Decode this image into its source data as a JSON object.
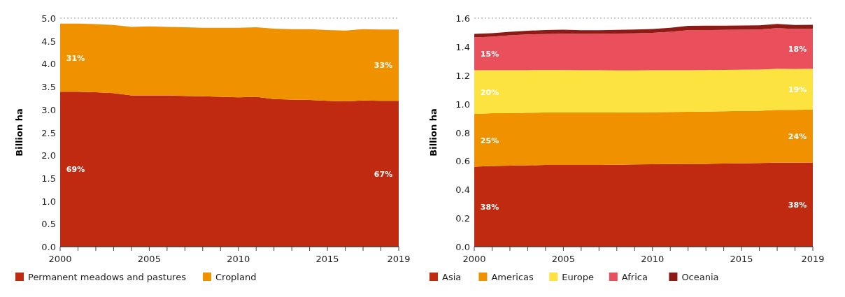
{
  "chart_data": [
    {
      "type": "area",
      "stacked": true,
      "ylabel": "Billion ha",
      "x": [
        2000,
        2001,
        2002,
        2003,
        2004,
        2005,
        2006,
        2007,
        2008,
        2009,
        2010,
        2011,
        2012,
        2013,
        2014,
        2015,
        2016,
        2017,
        2018,
        2019
      ],
      "series": [
        {
          "name": "Permanent meadows and pastures",
          "color": "#c02a10",
          "values": [
            3.39,
            3.39,
            3.38,
            3.36,
            3.31,
            3.31,
            3.31,
            3.3,
            3.29,
            3.28,
            3.27,
            3.28,
            3.23,
            3.22,
            3.21,
            3.19,
            3.18,
            3.2,
            3.19,
            3.19
          ]
        },
        {
          "name": "Cropland",
          "color": "#f09200",
          "values": [
            1.49,
            1.49,
            1.49,
            1.49,
            1.5,
            1.51,
            1.5,
            1.5,
            1.5,
            1.51,
            1.52,
            1.52,
            1.54,
            1.54,
            1.55,
            1.55,
            1.55,
            1.56,
            1.56,
            1.56
          ]
        }
      ],
      "xlim": [
        2000,
        2019
      ],
      "xticks": [
        2000,
        {
          "value": 2001,
          "label": null
        },
        {
          "value": 2002,
          "label": null
        },
        {
          "value": 2003,
          "label": null
        },
        {
          "value": 2004,
          "label": null
        },
        2005,
        {
          "value": 2006,
          "label": null
        },
        {
          "value": 2007,
          "label": null
        },
        {
          "value": 2008,
          "label": null
        },
        {
          "value": 2009,
          "label": null
        },
        2010,
        {
          "value": 2011,
          "label": null
        },
        {
          "value": 2012,
          "label": null
        },
        {
          "value": 2013,
          "label": null
        },
        {
          "value": 2014,
          "label": null
        },
        2015,
        {
          "value": 2016,
          "label": null
        },
        {
          "value": 2017,
          "label": null
        },
        {
          "value": 2018,
          "label": null
        },
        2019
      ],
      "ylim": [
        0,
        5
      ],
      "yticks": [
        {
          "value": 0,
          "label": "0.0"
        },
        0.5,
        {
          "value": 1,
          "label": "1.0"
        },
        1.5,
        {
          "value": 2,
          "label": "2.0"
        },
        2.5,
        {
          "value": 3,
          "label": "3.0"
        },
        3.5,
        {
          "value": 4,
          "label": "4.0"
        },
        4.5,
        {
          "value": 5,
          "label": "5.0"
        }
      ],
      "ref_lines": [
        {
          "axis": "y",
          "value": 5,
          "color": "#999999",
          "line_style": "dotted"
        }
      ],
      "annotations": [
        "31%",
        "33%",
        "69%",
        "67%"
      ],
      "legend": "bottom"
    },
    {
      "type": "area",
      "stacked": true,
      "ylabel": "Billion ha",
      "x": [
        2000,
        2001,
        2002,
        2003,
        2004,
        2005,
        2006,
        2007,
        2008,
        2009,
        2010,
        2011,
        2012,
        2013,
        2014,
        2015,
        2016,
        2017,
        2018,
        2019
      ],
      "series": [
        {
          "name": "Asia",
          "color": "#c02a10",
          "values": [
            0.56,
            0.565,
            0.567,
            0.57,
            0.572,
            0.572,
            0.573,
            0.573,
            0.574,
            0.576,
            0.577,
            0.578,
            0.58,
            0.58,
            0.582,
            0.584,
            0.586,
            0.588,
            0.588,
            0.589
          ]
        },
        {
          "name": "Americas",
          "color": "#f09200",
          "values": [
            0.37,
            0.37,
            0.368,
            0.368,
            0.368,
            0.368,
            0.367,
            0.367,
            0.366,
            0.365,
            0.365,
            0.365,
            0.364,
            0.366,
            0.366,
            0.366,
            0.366,
            0.37,
            0.37,
            0.371
          ]
        },
        {
          "name": "Europe",
          "color": "#fce340",
          "values": [
            0.305,
            0.3,
            0.3,
            0.298,
            0.297,
            0.297,
            0.296,
            0.295,
            0.294,
            0.293,
            0.293,
            0.292,
            0.292,
            0.291,
            0.29,
            0.289,
            0.288,
            0.287,
            0.286,
            0.285
          ]
        },
        {
          "name": "Africa",
          "color": "#ea505c",
          "values": [
            0.23,
            0.235,
            0.245,
            0.25,
            0.252,
            0.254,
            0.254,
            0.256,
            0.258,
            0.26,
            0.262,
            0.27,
            0.28,
            0.28,
            0.28,
            0.28,
            0.28,
            0.285,
            0.28,
            0.28
          ]
        },
        {
          "name": "Oceania",
          "color": "#8e1a16",
          "values": [
            0.025,
            0.025,
            0.025,
            0.026,
            0.028,
            0.028,
            0.025,
            0.025,
            0.026,
            0.026,
            0.027,
            0.028,
            0.03,
            0.03,
            0.03,
            0.03,
            0.03,
            0.03,
            0.028,
            0.028
          ]
        }
      ],
      "xlim": [
        2000,
        2019
      ],
      "xticks": [
        2000,
        {
          "value": 2001,
          "label": null
        },
        {
          "value": 2002,
          "label": null
        },
        {
          "value": 2003,
          "label": null
        },
        {
          "value": 2004,
          "label": null
        },
        2005,
        {
          "value": 2006,
          "label": null
        },
        {
          "value": 2007,
          "label": null
        },
        {
          "value": 2008,
          "label": null
        },
        {
          "value": 2009,
          "label": null
        },
        2010,
        {
          "value": 2011,
          "label": null
        },
        {
          "value": 2012,
          "label": null
        },
        {
          "value": 2013,
          "label": null
        },
        {
          "value": 2014,
          "label": null
        },
        2015,
        {
          "value": 2016,
          "label": null
        },
        {
          "value": 2017,
          "label": null
        },
        {
          "value": 2018,
          "label": null
        },
        2019
      ],
      "ylim": [
        0,
        1.6
      ],
      "yticks": [
        {
          "value": 0,
          "label": "0.0"
        },
        0.2,
        0.4,
        0.6,
        0.8,
        {
          "value": 1,
          "label": "1.0"
        },
        1.2,
        1.4,
        1.6
      ],
      "ref_lines": [
        {
          "axis": "y",
          "value": 1.6,
          "color": "#999999",
          "line_style": "dotted"
        }
      ],
      "annotations": [
        "15%",
        "18%",
        "20%",
        "19%",
        "25%",
        "24%",
        "38%",
        "38%"
      ],
      "legend": "bottom"
    }
  ]
}
